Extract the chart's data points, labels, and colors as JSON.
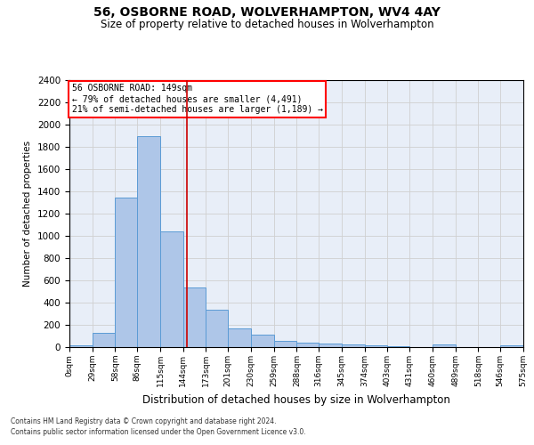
{
  "title": "56, OSBORNE ROAD, WOLVERHAMPTON, WV4 4AY",
  "subtitle": "Size of property relative to detached houses in Wolverhampton",
  "xlabel": "Distribution of detached houses by size in Wolverhampton",
  "ylabel": "Number of detached properties",
  "footer_line1": "Contains HM Land Registry data © Crown copyright and database right 2024.",
  "footer_line2": "Contains public sector information licensed under the Open Government Licence v3.0.",
  "annotation_title": "56 OSBORNE ROAD: 149sqm",
  "annotation_line1": "← 79% of detached houses are smaller (4,491)",
  "annotation_line2": "21% of semi-detached houses are larger (1,189) →",
  "property_size_sqm": 149,
  "bin_edges": [
    0,
    29,
    58,
    86,
    115,
    144,
    173,
    201,
    230,
    259,
    288,
    316,
    345,
    374,
    403,
    431,
    460,
    489,
    518,
    546,
    575
  ],
  "bar_values": [
    15,
    125,
    1345,
    1895,
    1042,
    540,
    335,
    170,
    110,
    60,
    42,
    30,
    27,
    20,
    5,
    0,
    22,
    0,
    0,
    15
  ],
  "bar_color": "#aec6e8",
  "bar_edge_color": "#5b9bd5",
  "vline_color": "#cc0000",
  "vline_x": 149,
  "ylim": [
    0,
    2400
  ],
  "yticks": [
    0,
    200,
    400,
    600,
    800,
    1000,
    1200,
    1400,
    1600,
    1800,
    2000,
    2200,
    2400
  ],
  "grid_color": "#d0d0d0",
  "background_color": "#e8eef8",
  "title_fontsize": 10,
  "subtitle_fontsize": 8.5
}
